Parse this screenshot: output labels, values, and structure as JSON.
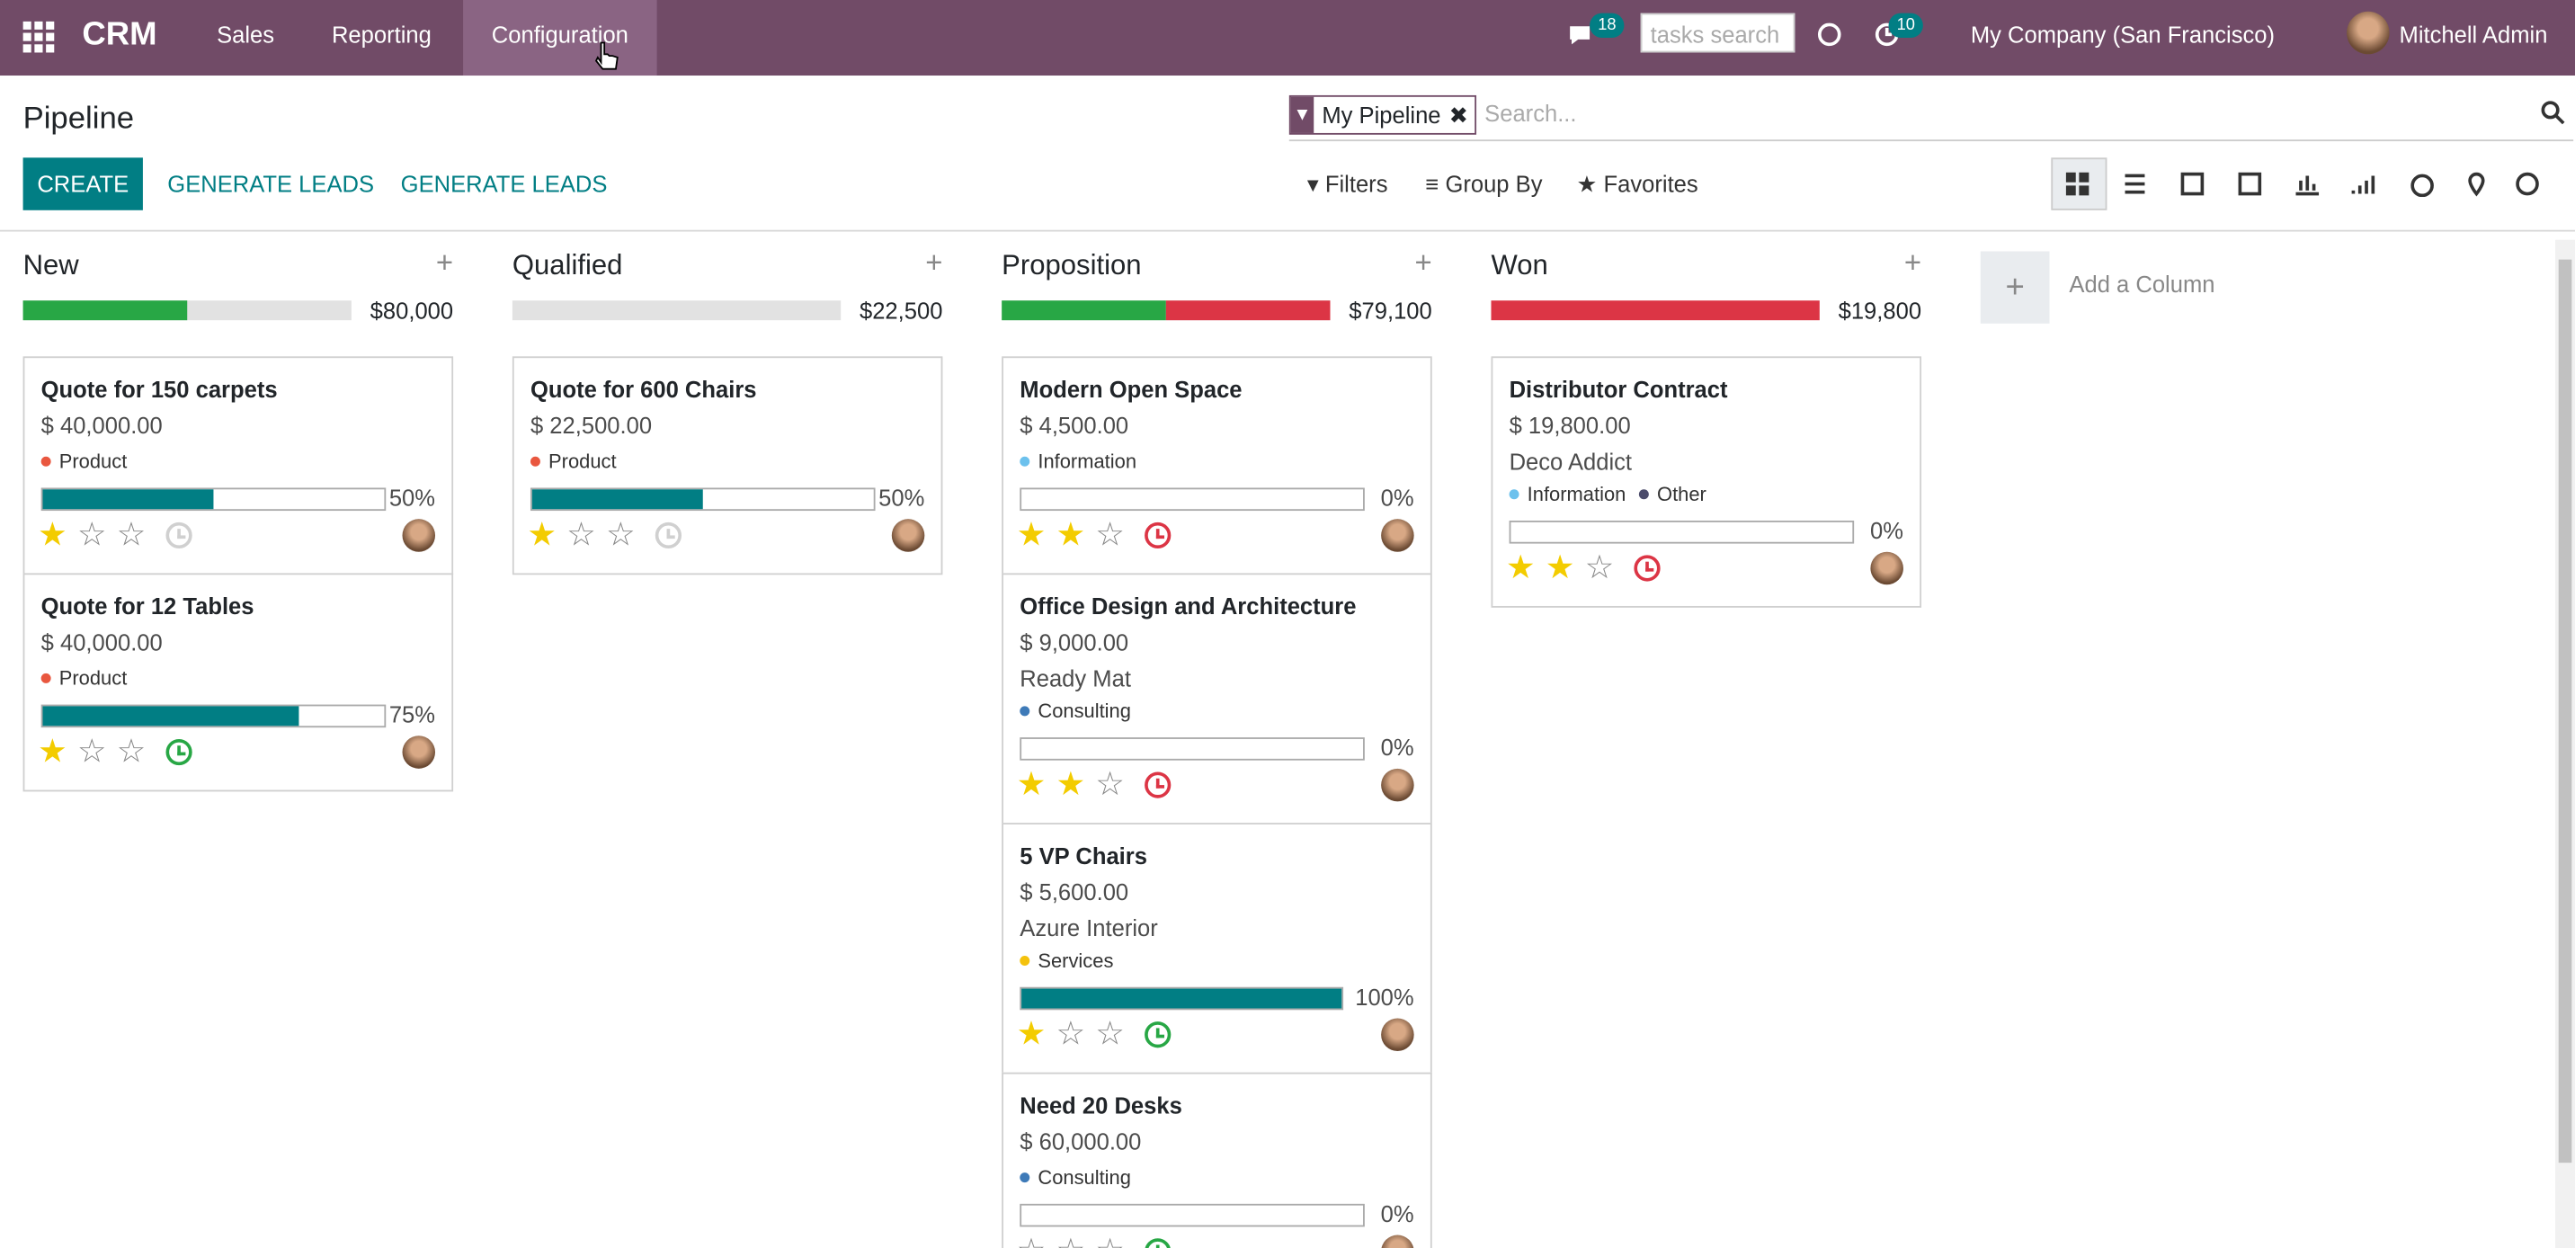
{
  "navbar": {
    "app": "CRM",
    "menu": [
      "Sales",
      "Reporting",
      "Configuration"
    ],
    "messages_badge": "18",
    "search_placeholder": "tasks search",
    "activities_badge": "10",
    "company": "My Company (San Francisco)",
    "user": "Mitchell Admin"
  },
  "control_panel": {
    "title": "Pipeline",
    "facet": "My Pipeline",
    "search_placeholder": "Search...",
    "buttons": [
      "CREATE",
      "GENERATE LEADS",
      "GENERATE LEADS"
    ],
    "filters": [
      "Filters",
      "Group By",
      "Favorites"
    ]
  },
  "columns": [
    {
      "name": "New",
      "total": "$80,000",
      "bar": [
        {
          "color": "#28a745",
          "value": 50
        }
      ],
      "cards": [
        {
          "title": "Quote for 150 carpets",
          "amount": "$ 40,000.00",
          "tags": [
            {
              "name": "Product",
              "color": "#e9573f"
            }
          ],
          "probability": {
            "value": 50,
            "label": "50%"
          },
          "priority": 1,
          "activity_color": "#d0d0d0"
        },
        {
          "title": "Quote for 12 Tables",
          "amount": "$ 40,000.00",
          "tags": [
            {
              "name": "Product",
              "color": "#e9573f"
            }
          ],
          "probability": {
            "value": 75,
            "label": "75%"
          },
          "priority": 1,
          "activity_color": "#28a745"
        }
      ]
    },
    {
      "name": "Qualified",
      "total": "$22,500",
      "bar": [],
      "cards": [
        {
          "title": "Quote for 600 Chairs",
          "amount": "$ 22,500.00",
          "tags": [
            {
              "name": "Product",
              "color": "#e9573f"
            }
          ],
          "probability": {
            "value": 50,
            "label": "50%"
          },
          "priority": 1,
          "activity_color": "#d0d0d0"
        }
      ]
    },
    {
      "name": "Proposition",
      "total": "$79,100",
      "bar": [
        {
          "color": "#28a745",
          "value": 50
        },
        {
          "color": "#dc3545",
          "value": 50
        }
      ],
      "cards": [
        {
          "title": "Modern Open Space",
          "amount": "$ 4,500.00",
          "tags": [
            {
              "name": "Information",
              "color": "#6cc1ed"
            }
          ],
          "probability": {
            "value": 0,
            "label": "0%"
          },
          "priority": 2,
          "activity_color": "#dc3545"
        },
        {
          "title": "Office Design and Architecture",
          "amount": "$ 9,000.00",
          "customer": "Ready Mat",
          "tags": [
            {
              "name": "Consulting",
              "color": "#3e7ab8"
            }
          ],
          "probability": {
            "value": 0,
            "label": "0%"
          },
          "priority": 2,
          "activity_color": "#dc3545"
        },
        {
          "title": "5 VP Chairs",
          "amount": "$ 5,600.00",
          "customer": "Azure Interior",
          "tags": [
            {
              "name": "Services",
              "color": "#f4c20d"
            }
          ],
          "probability": {
            "value": 100,
            "label": "100%"
          },
          "priority": 1,
          "activity_color": "#28a745"
        },
        {
          "title": "Need 20 Desks",
          "amount": "$ 60,000.00",
          "tags": [
            {
              "name": "Consulting",
              "color": "#3e7ab8"
            }
          ],
          "probability": {
            "value": 0,
            "label": "0%"
          },
          "priority": 0,
          "activity_color": "#28a745"
        }
      ]
    },
    {
      "name": "Won",
      "total": "$19,800",
      "bar": [
        {
          "color": "#dc3545",
          "value": 100
        }
      ],
      "cards": [
        {
          "title": "Distributor Contract",
          "amount": "$ 19,800.00",
          "customer": "Deco Addict",
          "tags": [
            {
              "name": "Information",
              "color": "#6cc1ed"
            },
            {
              "name": "Other",
              "color": "#4c4c6b"
            }
          ],
          "probability": {
            "value": 0,
            "label": "0%"
          },
          "priority": 2,
          "activity_color": "#dc3545"
        }
      ]
    }
  ],
  "add_column": "Add a Column"
}
